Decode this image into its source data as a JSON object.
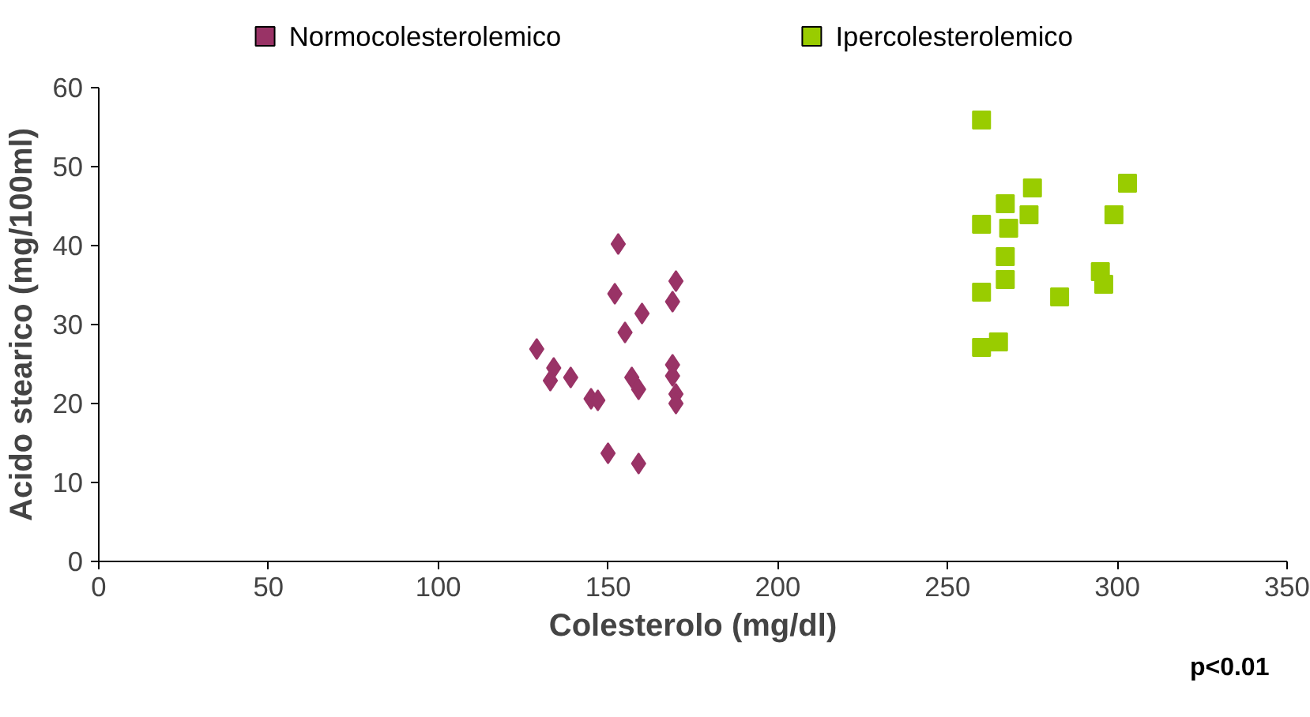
{
  "chart_data": {
    "type": "scatter",
    "xlabel": "Colesterolo (mg/dl)",
    "ylabel": "Acido stearico (mg/100ml)",
    "xlim": [
      0,
      350
    ],
    "xticks": [
      0,
      50,
      100,
      150,
      200,
      250,
      300,
      350
    ],
    "ylim": [
      0,
      60
    ],
    "yticks": [
      0,
      10,
      20,
      30,
      40,
      50,
      60
    ],
    "grid": false,
    "legend": "top",
    "annotations": [
      "p<0.01"
    ],
    "series": [
      {
        "name": "Normocolesterolemico",
        "color": "#993366",
        "marker": "diamond",
        "x": [
          129,
          134,
          133,
          139,
          145,
          147,
          150,
          152,
          153,
          155,
          157,
          159,
          160,
          159,
          170,
          169,
          169,
          169,
          170,
          170
        ],
        "values": [
          26.9,
          24.5,
          22.9,
          23.3,
          20.6,
          20.4,
          13.7,
          33.9,
          40.2,
          29,
          23.3,
          21.8,
          31.4,
          12.4,
          35.5,
          32.9,
          24.9,
          23.5,
          21.2,
          20
        ]
      },
      {
        "name": "Ipercolesterolemico",
        "color": "#99cc00",
        "marker": "square",
        "x": [
          260,
          275,
          303,
          267,
          274,
          299,
          260,
          268,
          267,
          295,
          267,
          296,
          260,
          283,
          260,
          265
        ],
        "values": [
          55.9,
          47.3,
          47.9,
          45.3,
          43.9,
          43.9,
          42.7,
          42.2,
          38.6,
          36.7,
          35.7,
          35.1,
          34.1,
          33.5,
          27.1,
          27.8
        ]
      }
    ]
  }
}
